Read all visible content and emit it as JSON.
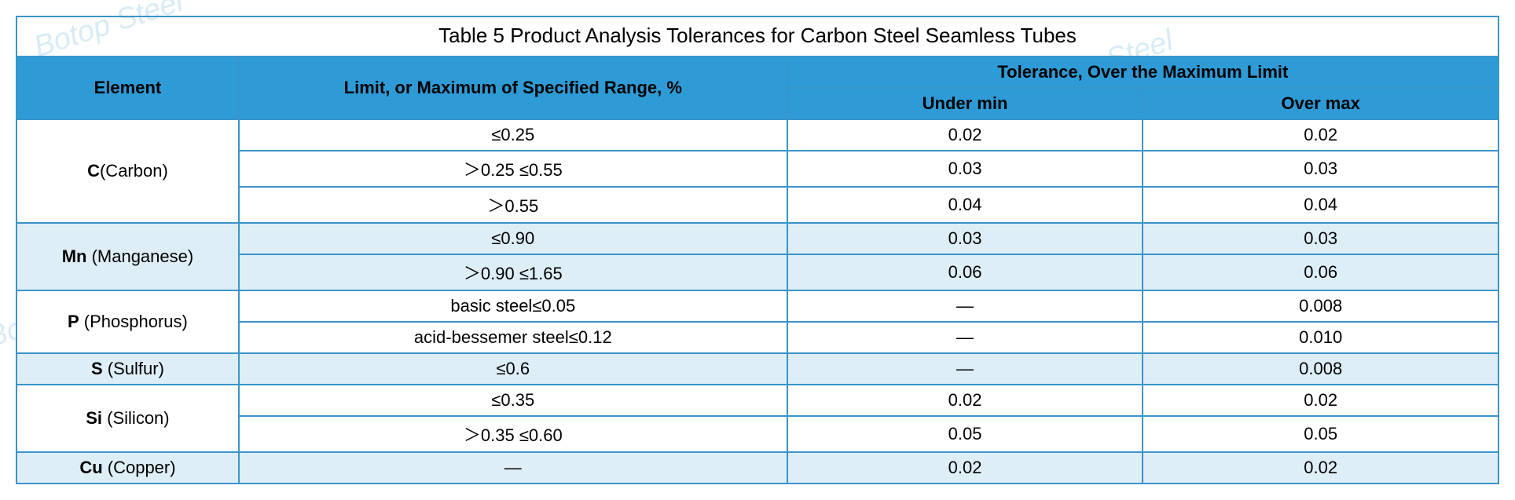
{
  "colors": {
    "header_bg": "#2e9bd6",
    "border": "#3a94c9",
    "alt_row_bg": "#deeef7",
    "plain_bg": "#ffffff",
    "watermark": "#d8ecf7",
    "text": "#000000"
  },
  "typography": {
    "caption_fontsize_pt": 20,
    "cell_fontsize_pt": 17,
    "font_family": "Arial, sans-serif"
  },
  "watermark_text": "Botop Steel",
  "table": {
    "caption": "Table 5 Product Analysis Tolerances for Carbon Steel Seamless Tubes",
    "headers": {
      "element": "Element",
      "limit": "Limit, or Maximum of Specified Range, %",
      "tolerance_group": "Tolerance, Over the Maximum Limit",
      "under_min": "Under min",
      "over_max": "Over max"
    },
    "column_widths_pct": [
      15,
      37,
      24,
      24
    ],
    "groups": [
      {
        "element_symbol": "C",
        "element_name": "(Carbon)",
        "rows": [
          {
            "limit": "≤0.25",
            "under_min": "0.02",
            "over_max": "0.02",
            "shade": "plain"
          },
          {
            "limit": "＞0.25 ≤0.55",
            "under_min": "0.03",
            "over_max": "0.03",
            "shade": "plain"
          },
          {
            "limit": "＞0.55",
            "under_min": "0.04",
            "over_max": "0.04",
            "shade": "plain"
          }
        ]
      },
      {
        "element_symbol": "Mn",
        "element_name": " (Manganese)",
        "rows": [
          {
            "limit": "≤0.90",
            "under_min": "0.03",
            "over_max": "0.03",
            "shade": "alt"
          },
          {
            "limit": "＞0.90 ≤1.65",
            "under_min": "0.06",
            "over_max": "0.06",
            "shade": "alt"
          }
        ]
      },
      {
        "element_symbol": "P",
        "element_name": " (Phosphorus)",
        "rows": [
          {
            "limit": "basic steel≤0.05",
            "under_min": "—",
            "over_max": "0.008",
            "shade": "plain"
          },
          {
            "limit": "acid-bessemer steel≤0.12",
            "under_min": "—",
            "over_max": "0.010",
            "shade": "plain"
          }
        ]
      },
      {
        "element_symbol": "S",
        "element_name": " (Sulfur)",
        "rows": [
          {
            "limit": "≤0.6",
            "under_min": "—",
            "over_max": "0.008",
            "shade": "alt"
          }
        ]
      },
      {
        "element_symbol": "Si",
        "element_name": " (Silicon)",
        "rows": [
          {
            "limit": "≤0.35",
            "under_min": "0.02",
            "over_max": "0.02",
            "shade": "plain"
          },
          {
            "limit": "＞0.35 ≤0.60",
            "under_min": "0.05",
            "over_max": "0.05",
            "shade": "plain"
          }
        ]
      },
      {
        "element_symbol": "Cu",
        "element_name": " (Copper)",
        "rows": [
          {
            "limit": "—",
            "under_min": "0.02",
            "over_max": "0.02",
            "shade": "alt"
          }
        ]
      }
    ]
  }
}
